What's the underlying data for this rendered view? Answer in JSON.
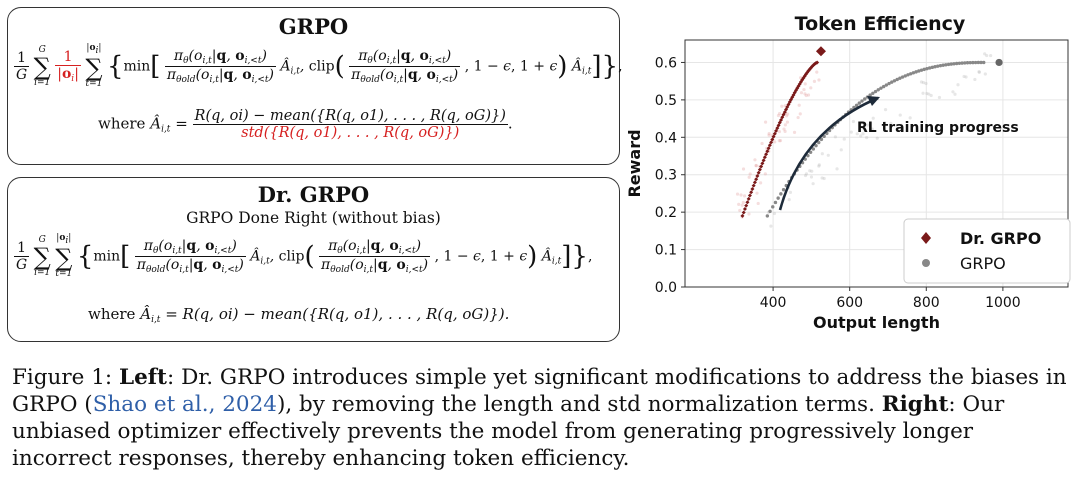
{
  "left_panel": {
    "grpo": {
      "title": "GRPO",
      "where_label": "where",
      "adv_lhs": "Â",
      "adv_sub": "i,t",
      "numerator": "R(q, oi) − mean({R(q, o1), . . . , R(q, oG)})",
      "denominator": "std({R(q, o1), . . . , R(q, oG)})"
    },
    "dr_grpo": {
      "title": "Dr. GRPO",
      "subtitle": "GRPO Done Right (without bias)",
      "where_label": "where",
      "advantage": "R(q, oi) − mean({R(q, o1), . . . , R(q, oG)})."
    }
  },
  "chart_data": {
    "type": "scatter",
    "title": "Token Efficiency",
    "xlabel": "Output length",
    "ylabel": "Reward",
    "xlim": [
      170,
      1170
    ],
    "ylim": [
      0.0,
      0.66
    ],
    "xticks": [
      400,
      600,
      800,
      1000
    ],
    "yticks": [
      0.0,
      0.1,
      0.2,
      0.3,
      0.4,
      0.5,
      0.6
    ],
    "grid": true,
    "legend_position": "bottom-right",
    "annotation": "RL training progress",
    "series": [
      {
        "name": "Dr. GRPO",
        "color": "#7a1a1a",
        "marker": "diamond",
        "start": [
          320,
          0.19
        ],
        "end": [
          515,
          0.6
        ],
        "final_point": [
          525,
          0.63
        ]
      },
      {
        "name": "GRPO",
        "color": "#888888",
        "marker": "circle",
        "start": [
          385,
          0.19
        ],
        "end": [
          950,
          0.6
        ],
        "final_point": [
          990,
          0.6
        ]
      }
    ]
  },
  "caption": {
    "figure_label": "Figure 1:",
    "left_label": "Left",
    "left_text": ": Dr. GRPO introduces simple yet significant modifications to address the biases in GRPO (",
    "citation": "Shao et al., 2024",
    "left_text_end": "), by removing the length and std normalization terms.",
    "right_label": "Right",
    "right_text": ": Our unbiased optimizer effectively prevents the model from generating progressively longer incorrect responses, thereby enhancing token efficiency."
  }
}
